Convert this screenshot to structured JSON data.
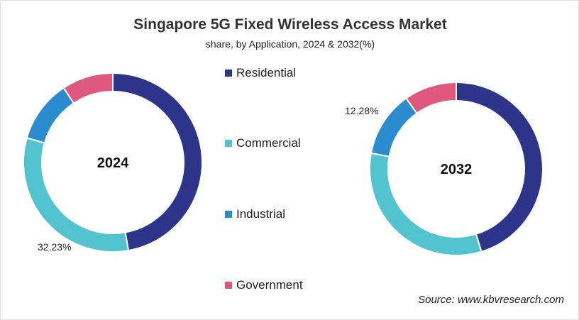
{
  "chart_data": [
    {
      "type": "pie",
      "title": "Singapore 5G Fixed Wireless Access Market",
      "subtitle": "share, by Application, 2024 & 2032(%)",
      "center_label": "2024",
      "categories": [
        "Residential",
        "Commercial",
        "Industrial",
        "Government"
      ],
      "values": [
        47.2,
        32.23,
        11.3,
        9.27
      ],
      "labeled_value": "32.23%",
      "donut": true
    },
    {
      "type": "pie",
      "center_label": "2032",
      "categories": [
        "Residential",
        "Commercial",
        "Industrial",
        "Government"
      ],
      "values": [
        45.3,
        32.6,
        12.28,
        9.82
      ],
      "labeled_value": "12.28%",
      "donut": true
    }
  ],
  "legend": [
    {
      "label": "Residential",
      "color": "#2c3589"
    },
    {
      "label": "Commercial",
      "color": "#52c3cf"
    },
    {
      "label": "Industrial",
      "color": "#2a8bcf"
    },
    {
      "label": "Government",
      "color": "#e0587e"
    }
  ],
  "title": "Singapore 5G Fixed Wireless Access Market",
  "subtitle": "share, by Application, 2024 & 2032(%)",
  "source": "Source: www.kbvresearch.com"
}
